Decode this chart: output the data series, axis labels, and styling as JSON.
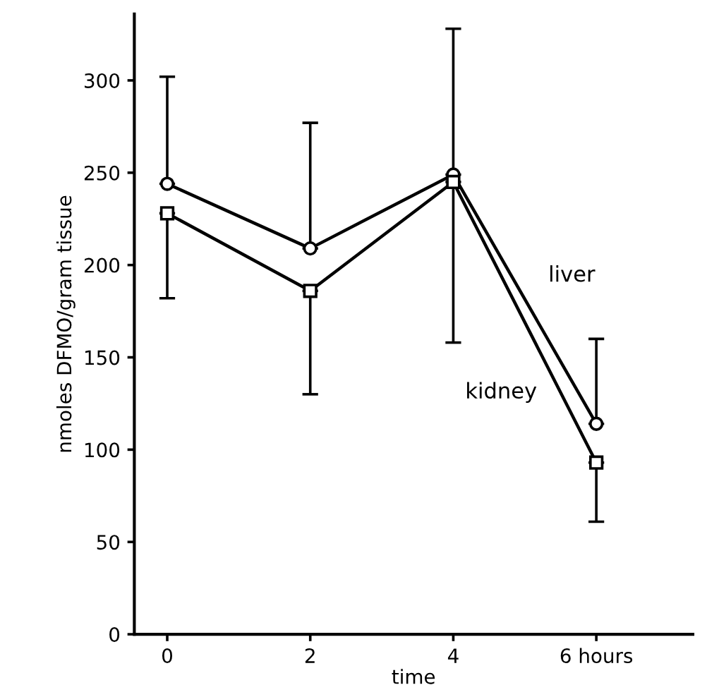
{
  "chart_data": {
    "type": "line",
    "xlabel": "time",
    "ylabel": "nmoles DFMO/gram tissue",
    "x": [
      0,
      2,
      4,
      6
    ],
    "xlim": [
      -0.46,
      7.35
    ],
    "ylim": [
      0,
      336
    ],
    "xticks": [
      0,
      2,
      4,
      {
        "value": 6,
        "label": "6 hours"
      }
    ],
    "yticks": [
      0,
      50,
      100,
      150,
      200,
      250,
      300
    ],
    "grid": false,
    "line_style": "solid",
    "series": [
      {
        "name": "liver",
        "color": "#000000",
        "marker": "circle",
        "values": [
          244,
          209,
          249,
          114
        ],
        "errors": [
          [
            244,
            302
          ],
          [
            209,
            277
          ],
          [
            249,
            328
          ],
          [
            114,
            160
          ]
        ]
      },
      {
        "name": "kidney",
        "color": "#000000",
        "marker": "square",
        "values": [
          228,
          186,
          245,
          93
        ],
        "errors": [
          [
            182,
            228
          ],
          [
            130,
            186
          ],
          [
            158,
            245
          ],
          [
            61,
            93
          ]
        ]
      }
    ]
  }
}
